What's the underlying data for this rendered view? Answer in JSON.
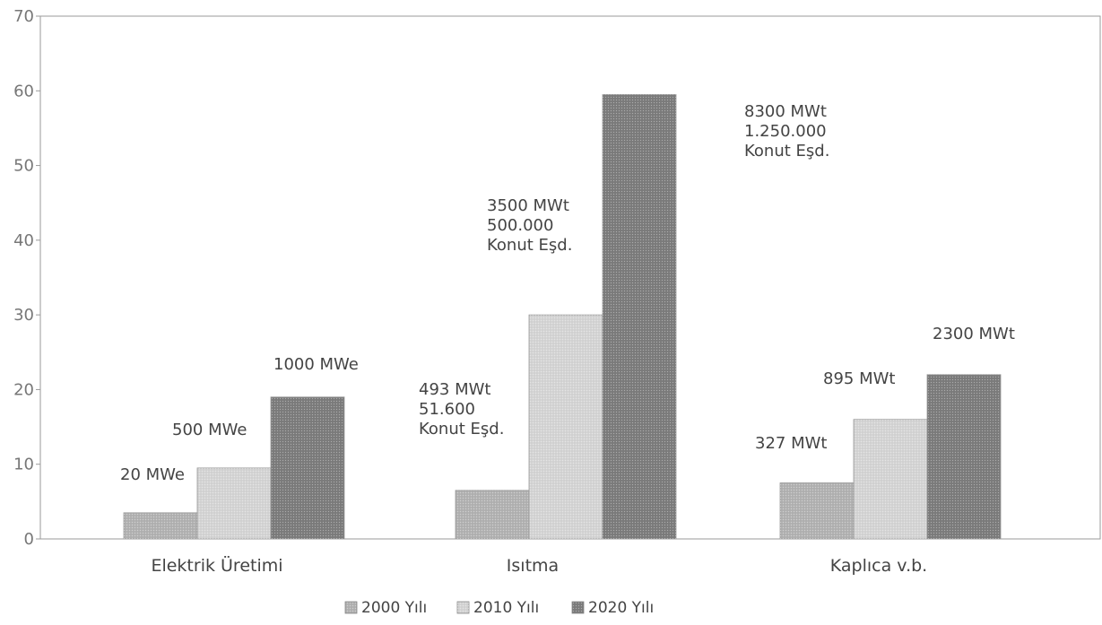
{
  "chart_data": {
    "type": "bar",
    "title": "",
    "xlabel": "",
    "ylabel": "",
    "ylim": [
      0,
      70
    ],
    "yticks": [
      0,
      10,
      20,
      30,
      40,
      50,
      60,
      70
    ],
    "grid": false,
    "legend_position": "bottom",
    "categories": [
      "Elektrik Üretimi",
      "Isıtma",
      "Kaplıca v.b."
    ],
    "series": [
      {
        "name": "2000 Yılı",
        "values": [
          3.5,
          6.5,
          7.5
        ],
        "color": "#b4b4b4"
      },
      {
        "name": "2010 Yılı",
        "values": [
          9.5,
          30,
          16
        ],
        "color": "#d6d6d6"
      },
      {
        "name": "2020 Yılı",
        "values": [
          19,
          59.5,
          22
        ],
        "color": "#7e7e7e"
      }
    ],
    "annotations": [
      {
        "category": 0,
        "series": 0,
        "lines": [
          "20 MWe"
        ]
      },
      {
        "category": 0,
        "series": 1,
        "lines": [
          "500 MWe"
        ]
      },
      {
        "category": 0,
        "series": 2,
        "lines": [
          "1000 MWe"
        ]
      },
      {
        "category": 1,
        "series": 0,
        "lines": [
          "493 MWt",
          "51.600",
          "Konut Eşd."
        ]
      },
      {
        "category": 1,
        "series": 1,
        "lines": [
          "3500 MWt",
          "500.000",
          "Konut Eşd."
        ]
      },
      {
        "category": 1,
        "series": 2,
        "lines": [
          "8300 MWt",
          "1.250.000",
          "Konut Eşd."
        ]
      },
      {
        "category": 2,
        "series": 0,
        "lines": [
          "327 MWt"
        ]
      },
      {
        "category": 2,
        "series": 1,
        "lines": [
          "895 MWt"
        ]
      },
      {
        "category": 2,
        "series": 2,
        "lines": [
          "2300 MWt"
        ]
      }
    ]
  }
}
